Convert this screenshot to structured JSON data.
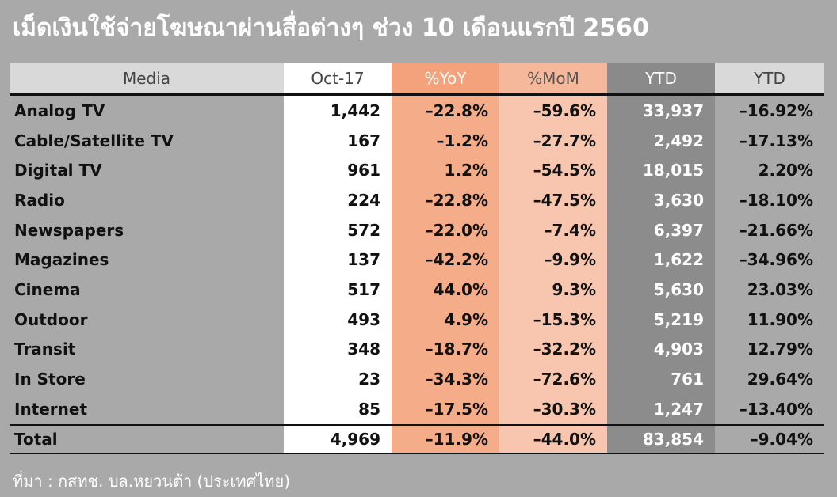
{
  "title": "เม็ดเงินใช้จ่ายโฆษณาผ่านสื่อต่างๆ ช่วง 10 เดือนแรกปี 2560",
  "table": {
    "header": [
      "Media",
      "Oct-17",
      "%YoY",
      "%MoM",
      "YTD",
      "YTD"
    ],
    "rows": [
      [
        "Analog TV",
        "1,442",
        "–22.8%",
        "–59.6%",
        "33,937",
        "–16.92%"
      ],
      [
        "Cable/Satellite TV",
        "167",
        "–1.2%",
        "–27.7%",
        "2,492",
        "–17.13%"
      ],
      [
        "Digital TV",
        "961",
        "1.2%",
        "–54.5%",
        "18,015",
        "2.20%"
      ],
      [
        "Radio",
        "224",
        "–22.8%",
        "–47.5%",
        "3,630",
        "–18.10%"
      ],
      [
        "Newspapers",
        "572",
        "–22.0%",
        "–7.4%",
        "6,397",
        "–21.66%"
      ],
      [
        "Magazines",
        "137",
        "–42.2%",
        "–9.9%",
        "1,622",
        "–34.96%"
      ],
      [
        "Cinema",
        "517",
        "44.0%",
        "9.3%",
        "5,630",
        "23.03%"
      ],
      [
        "Outdoor",
        "493",
        "4.9%",
        "–15.3%",
        "5,219",
        "11.90%"
      ],
      [
        "Transit",
        "348",
        "–18.7%",
        "–32.2%",
        "4,903",
        "12.79%"
      ],
      [
        "In Store",
        "23",
        "–34.3%",
        "–72.6%",
        "761",
        "29.64%"
      ],
      [
        "Internet",
        "85",
        "–17.5%",
        "–30.3%",
        "1,247",
        "–13.40%"
      ]
    ],
    "total": [
      "Total",
      "4,969",
      "–11.9%",
      "–44.0%",
      "83,854",
      "–9.04%"
    ]
  },
  "source": "ที่มา : กสทช. บล.หยวนต้า (ประเทศไทย)"
}
